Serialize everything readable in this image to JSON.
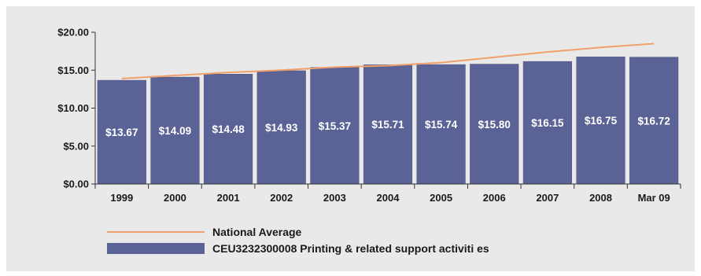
{
  "chart_data": {
    "type": "bar",
    "categories": [
      "1999",
      "2000",
      "2001",
      "2002",
      "2003",
      "2004",
      "2005",
      "2006",
      "2007",
      "2008",
      "Mar 09"
    ],
    "series": [
      {
        "name": "CEU3232300008 Printing & related support activiti es",
        "type": "bar",
        "values": [
          13.67,
          14.09,
          14.48,
          14.93,
          15.37,
          15.71,
          15.74,
          15.8,
          16.15,
          16.75,
          16.72
        ],
        "labels": [
          "$13.67",
          "$14.09",
          "$14.48",
          "$14.93",
          "$15.37",
          "$15.71",
          "$15.74",
          "$15.80",
          "$16.15",
          "$16.75",
          "$16.72"
        ],
        "color": "#5b6396"
      },
      {
        "name": "National Average",
        "type": "line",
        "values": [
          13.9,
          14.3,
          14.7,
          15.0,
          15.4,
          15.6,
          16.0,
          16.7,
          17.4,
          18.0,
          18.5
        ],
        "color": "#f0a06a"
      }
    ],
    "y_ticks": [
      "$0.00",
      "$5.00",
      "$10.00",
      "$15.00",
      "$20.00"
    ],
    "ylim": [
      0,
      20
    ],
    "grid": false,
    "legend_position": "bottom-left"
  }
}
